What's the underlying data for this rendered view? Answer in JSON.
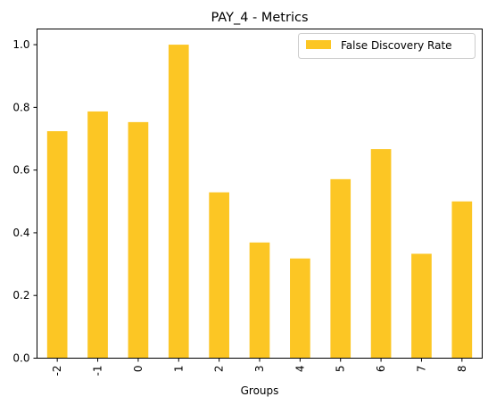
{
  "chart_data": {
    "type": "bar",
    "title": "PAY_4 - Metrics",
    "xlabel": "Groups",
    "ylabel": "",
    "categories": [
      "-2",
      "-1",
      "0",
      "1",
      "2",
      "3",
      "4",
      "5",
      "6",
      "7",
      "8"
    ],
    "series": [
      {
        "name": "False Discovery Rate",
        "color": "#fcc624",
        "values": [
          0.724,
          0.787,
          0.753,
          1.0,
          0.529,
          0.369,
          0.318,
          0.571,
          0.667,
          0.333,
          0.5
        ]
      }
    ],
    "ylim": [
      0,
      1.05
    ],
    "yticks": [
      "0.0",
      "0.2",
      "0.4",
      "0.6",
      "0.8",
      "1.0"
    ],
    "grid": false,
    "legend_position": "top-right"
  }
}
